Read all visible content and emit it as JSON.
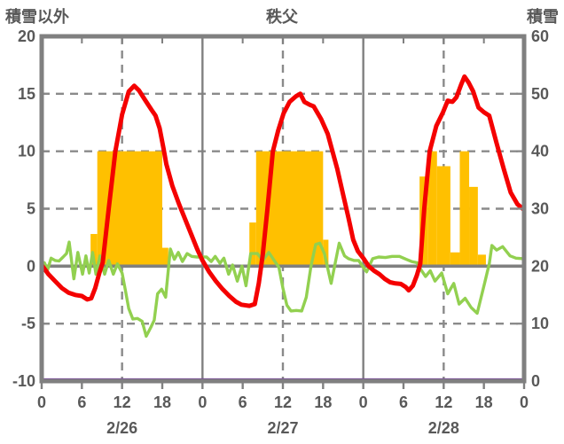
{
  "title": "秩父",
  "left_axis_label": "積雪以外",
  "right_axis_label": "積雪",
  "colors": {
    "temperature_line": "#f40000",
    "green_line": "#92d050",
    "sunshine_bars": "#ffc000",
    "snow_depth_line": "#7030a0",
    "frame_gray": "#808080",
    "grid_gray": "#8a8a8a",
    "text_gray": "#595959",
    "background": "#ffffff"
  },
  "chart_data": {
    "type": "combo (bar + line)",
    "title": "秩父",
    "x_axis": {
      "unit": "hour",
      "range": [
        0,
        72
      ],
      "tick_interval": 6,
      "tick_labels": [
        "0",
        "6",
        "12",
        "18",
        "0",
        "6",
        "12",
        "18",
        "0",
        "6",
        "12",
        "18",
        "0"
      ],
      "day_labels": [
        "2/26",
        "2/27",
        "2/28"
      ],
      "day_label_center_hours": [
        12,
        36,
        60
      ],
      "dashed_gridline_hours": [
        12,
        36,
        60
      ],
      "solid_gridline_hours": [
        24,
        48
      ]
    },
    "left_axis": {
      "label": "積雪以外",
      "range": [
        -10,
        20
      ],
      "ticks": [
        20,
        15,
        10,
        5,
        0,
        -5,
        -10
      ],
      "dashed_gridline_values": [
        15,
        10,
        5,
        -5
      ],
      "zero_line_value": 0
    },
    "right_axis": {
      "label": "積雪",
      "range": [
        0,
        60
      ],
      "ticks": [
        60,
        50,
        40,
        30,
        20,
        10,
        0
      ]
    },
    "sunshine_bars": {
      "axis": "left",
      "baseline": 0,
      "segments_start_end_value": [
        [
          7.3,
          8.3,
          2.8
        ],
        [
          8.3,
          18.0,
          10
        ],
        [
          18.0,
          18.9,
          1.6
        ],
        [
          31.0,
          32.0,
          3.8
        ],
        [
          32.0,
          42.0,
          10
        ],
        [
          42.0,
          42.8,
          2.3
        ],
        [
          56.4,
          57.6,
          7.8
        ],
        [
          57.6,
          59.0,
          10
        ],
        [
          59.0,
          61.0,
          8.7
        ],
        [
          61.0,
          62.4,
          1.2
        ],
        [
          62.4,
          63.8,
          10
        ],
        [
          63.8,
          65.1,
          6.9
        ],
        [
          65.1,
          66.3,
          1.0
        ]
      ]
    },
    "temperature_line": {
      "axis": "left",
      "points_hour_value": [
        [
          0,
          0.1
        ],
        [
          1,
          -0.7
        ],
        [
          2,
          -1.3
        ],
        [
          3,
          -1.9
        ],
        [
          4,
          -2.3
        ],
        [
          5,
          -2.5
        ],
        [
          6,
          -2.6
        ],
        [
          6.8,
          -2.9
        ],
        [
          7.4,
          -2.8
        ],
        [
          8,
          -1.9
        ],
        [
          8.6,
          -0.6
        ],
        [
          9.1,
          0.3
        ],
        [
          10,
          5
        ],
        [
          11,
          10
        ],
        [
          12,
          13.2
        ],
        [
          13,
          15.2
        ],
        [
          13.8,
          15.7
        ],
        [
          14.5,
          15.3
        ],
        [
          15.5,
          14.4
        ],
        [
          16.4,
          13.6
        ],
        [
          17,
          13.1
        ],
        [
          17.6,
          12
        ],
        [
          18.2,
          10.2
        ],
        [
          18.6,
          8.9
        ],
        [
          19.5,
          7
        ],
        [
          20.5,
          5.4
        ],
        [
          21.4,
          4.1
        ],
        [
          22.3,
          2.8
        ],
        [
          23.2,
          1.5
        ],
        [
          24,
          0.5
        ],
        [
          25,
          -0.5
        ],
        [
          26,
          -1.3
        ],
        [
          27,
          -2
        ],
        [
          28,
          -2.6
        ],
        [
          29,
          -3.1
        ],
        [
          29.8,
          -3.35
        ],
        [
          31,
          -3.45
        ],
        [
          31.8,
          -3.3
        ],
        [
          32.4,
          -1.5
        ],
        [
          33,
          1
        ],
        [
          33.7,
          5
        ],
        [
          34.5,
          10
        ],
        [
          35.3,
          11.8
        ],
        [
          36.1,
          13.3
        ],
        [
          37,
          14.3
        ],
        [
          38,
          14.8
        ],
        [
          38.6,
          15
        ],
        [
          39.2,
          14.3
        ],
        [
          40,
          14.05
        ],
        [
          40.6,
          13.9
        ],
        [
          41.7,
          12.8
        ],
        [
          42.7,
          11.5
        ],
        [
          43.4,
          10
        ],
        [
          44.1,
          8.5
        ],
        [
          45,
          6.2
        ],
        [
          45.8,
          4.2
        ],
        [
          46.5,
          2.3
        ],
        [
          47.2,
          1.3
        ],
        [
          48,
          0.7
        ],
        [
          48.8,
          0
        ],
        [
          49.6,
          -0.4
        ],
        [
          50.4,
          -0.7
        ],
        [
          51.2,
          -1.1
        ],
        [
          52,
          -1.4
        ],
        [
          52.8,
          -1.5
        ],
        [
          53.6,
          -1.55
        ],
        [
          54.3,
          -1.8
        ],
        [
          54.8,
          -2.1
        ],
        [
          55.4,
          -1.7
        ],
        [
          56,
          -0.8
        ],
        [
          56.5,
          0.2
        ],
        [
          57.1,
          5
        ],
        [
          57.9,
          10
        ],
        [
          58.9,
          12.2
        ],
        [
          59.9,
          13.4
        ],
        [
          60.6,
          14.4
        ],
        [
          61.3,
          14.3
        ],
        [
          61.9,
          14.7
        ],
        [
          62.6,
          15.8
        ],
        [
          63.1,
          16.5
        ],
        [
          63.7,
          16
        ],
        [
          64.4,
          15.2
        ],
        [
          65.2,
          13.8
        ],
        [
          66,
          13.4
        ],
        [
          66.8,
          13.1
        ],
        [
          67.9,
          10.7
        ],
        [
          69,
          8.4
        ],
        [
          70,
          6.4
        ],
        [
          71,
          5.4
        ],
        [
          72,
          4.9
        ]
      ]
    },
    "green_line": {
      "axis": "left",
      "points_hour_value": [
        [
          0,
          -0.75
        ],
        [
          0.4,
          0.3
        ],
        [
          0.9,
          -0.3
        ],
        [
          1.4,
          0.7
        ],
        [
          2,
          0.5
        ],
        [
          2.6,
          0.45
        ],
        [
          3.2,
          0.8
        ],
        [
          3.7,
          1.1
        ],
        [
          4.1,
          2.1
        ],
        [
          4.8,
          -1.1
        ],
        [
          5.4,
          1.2
        ],
        [
          6.1,
          -0.7
        ],
        [
          6.6,
          0.9
        ],
        [
          7.1,
          -0.6
        ],
        [
          7.6,
          1.2
        ],
        [
          8.1,
          -0.7
        ],
        [
          8.7,
          0.9
        ],
        [
          9.4,
          -0.7
        ],
        [
          10,
          0.5
        ],
        [
          10.7,
          -0.7
        ],
        [
          11.3,
          0.2
        ],
        [
          12,
          -0.6
        ],
        [
          12.5,
          -2.1
        ],
        [
          13,
          -3.7
        ],
        [
          13.6,
          -4.6
        ],
        [
          14.3,
          -4.55
        ],
        [
          15,
          -4.8
        ],
        [
          15.6,
          -6.1
        ],
        [
          16.3,
          -5.3
        ],
        [
          16.8,
          -4.7
        ],
        [
          17.3,
          -2.4
        ],
        [
          17.9,
          -2
        ],
        [
          18.5,
          -2.7
        ],
        [
          19.2,
          1.5
        ],
        [
          19.8,
          0.6
        ],
        [
          20.4,
          1.2
        ],
        [
          21,
          0.4
        ],
        [
          21.7,
          1.1
        ],
        [
          22.4,
          0.85
        ],
        [
          23.2,
          0.8
        ],
        [
          24,
          0.8
        ],
        [
          24.6,
          0.8
        ],
        [
          25.3,
          0.4
        ],
        [
          25.9,
          0.85
        ],
        [
          26.6,
          0.25
        ],
        [
          27.2,
          0.7
        ],
        [
          27.9,
          -0.7
        ],
        [
          28.5,
          0.1
        ],
        [
          29.2,
          -1.3
        ],
        [
          29.9,
          0
        ],
        [
          30.5,
          -1.7
        ],
        [
          31.2,
          1.1
        ],
        [
          32.2,
          1.1
        ],
        [
          33,
          0.5
        ],
        [
          33.9,
          1.2
        ],
        [
          34.7,
          0.5
        ],
        [
          35.4,
          -0.1
        ],
        [
          36,
          -1.9
        ],
        [
          36.6,
          -3.4
        ],
        [
          37.2,
          -3.9
        ],
        [
          38,
          -3.85
        ],
        [
          38.8,
          -3.9
        ],
        [
          39.5,
          -2.7
        ],
        [
          40.2,
          0
        ],
        [
          40.9,
          1.9
        ],
        [
          41.5,
          2
        ],
        [
          42.2,
          1.1
        ],
        [
          43.2,
          -1.5
        ],
        [
          44.4,
          2
        ],
        [
          45.2,
          0.9
        ],
        [
          45.8,
          0.65
        ],
        [
          46.6,
          0.5
        ],
        [
          47.3,
          0.5
        ],
        [
          48,
          -0.1
        ],
        [
          48.5,
          -0.5
        ],
        [
          49.4,
          0.65
        ],
        [
          50.3,
          0.8
        ],
        [
          51.3,
          0.75
        ],
        [
          52.3,
          0.85
        ],
        [
          53.4,
          0.85
        ],
        [
          54.4,
          0.6
        ],
        [
          55.2,
          0.4
        ],
        [
          56,
          0.3
        ],
        [
          56.6,
          -0.3
        ],
        [
          57.3,
          -0.9
        ],
        [
          58,
          -0.4
        ],
        [
          58.7,
          -1.3
        ],
        [
          59.7,
          -0.6
        ],
        [
          60.6,
          -2.4
        ],
        [
          61.5,
          -1.5
        ],
        [
          62.3,
          -3.3
        ],
        [
          63.2,
          -2.8
        ],
        [
          64.1,
          -3.6
        ],
        [
          65,
          -4.1
        ],
        [
          66.1,
          -1.5
        ],
        [
          66.8,
          0.2
        ],
        [
          67.2,
          1.8
        ],
        [
          67.9,
          1.4
        ],
        [
          68.8,
          1.7
        ],
        [
          69.9,
          0.9
        ],
        [
          70.8,
          0.7
        ],
        [
          72,
          0.65
        ]
      ]
    },
    "snow_depth_line": {
      "axis": "right",
      "constant_value": 0,
      "points_hour_value": [
        [
          0,
          0
        ],
        [
          72,
          0
        ]
      ]
    }
  }
}
